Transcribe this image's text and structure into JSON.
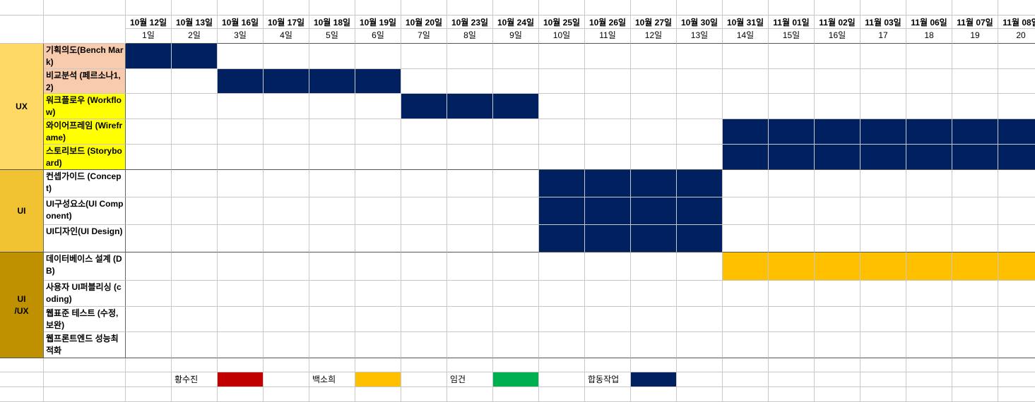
{
  "columns": [
    {
      "date": "10월 12일",
      "day": "1일"
    },
    {
      "date": "10월 13일",
      "day": "2일"
    },
    {
      "date": "10월 16일",
      "day": "3일"
    },
    {
      "date": "10월 17일",
      "day": "4일"
    },
    {
      "date": "10월 18일",
      "day": "5일"
    },
    {
      "date": "10월 19일",
      "day": "6일"
    },
    {
      "date": "10월 20일",
      "day": "7일"
    },
    {
      "date": "10월 23일",
      "day": "8일"
    },
    {
      "date": "10월 24일",
      "day": "9일"
    },
    {
      "date": "10월 25일",
      "day": "10일"
    },
    {
      "date": "10월 26일",
      "day": "11일"
    },
    {
      "date": "10월 27일",
      "day": "12일"
    },
    {
      "date": "10월 30일",
      "day": "13일"
    },
    {
      "date": "10월 31일",
      "day": "14일"
    },
    {
      "date": "11월 01일",
      "day": "15일"
    },
    {
      "date": "11월 02일",
      "day": "16일"
    },
    {
      "date": "11월 03일",
      "day": "17"
    },
    {
      "date": "11월 06일",
      "day": "18"
    },
    {
      "date": "11월 07일",
      "day": "19"
    },
    {
      "date": "11월 08일",
      "day": "20"
    }
  ],
  "groups": [
    {
      "label": "UX",
      "color": "#ffd966"
    },
    {
      "label": "UI",
      "color": "#f1c232"
    },
    {
      "label": "UI\n/UX",
      "color": "#bf9000"
    }
  ],
  "tasks": [
    {
      "name": "기획의도(Bench Mark)",
      "color": "#f8cbad",
      "bar_color": "#002060",
      "bar_start_day": 1,
      "bar_end_day": 2
    },
    {
      "name": "비교분석 (페르소나1, 2)",
      "color": "#f8cbad",
      "bar_color": "#002060",
      "bar_start_day": 3,
      "bar_end_day": 6
    },
    {
      "name": "워크플로우 (Workflow)",
      "color": "#ffff00",
      "bar_color": "#002060",
      "bar_start_day": 7,
      "bar_end_day": 9
    },
    {
      "name": "와이어프레임 (Wireframe)",
      "color": "#ffff00",
      "bar_color": "#002060",
      "bar_start_day": 14,
      "bar_end_day": 20
    },
    {
      "name": "스토리보드 (Storyboard)",
      "color": "#ffff00",
      "bar_color": "#002060",
      "bar_start_day": 14,
      "bar_end_day": 20
    },
    {
      "name": "컨셉가이드 (Concept)",
      "color": "#ffffff",
      "bar_color": "#002060",
      "bar_start_day": 10,
      "bar_end_day": 13
    },
    {
      "name": "UI구성요소(UI Component)",
      "color": "#ffffff",
      "bar_color": "#002060",
      "bar_start_day": 10,
      "bar_end_day": 13
    },
    {
      "name": "UI디자인(UI Design)",
      "color": "#ffffff",
      "bar_color": "#002060",
      "bar_start_day": 10,
      "bar_end_day": 13
    },
    {
      "name": "데이터베이스 설계 (DB)",
      "color": "#ffffff",
      "bar_color": "#ffc000",
      "bar_start_day": 14,
      "bar_end_day": 20
    },
    {
      "name": "사용자 UI퍼블리싱 (coding)",
      "color": "#ffffff",
      "bar_color": null,
      "bar_start_day": null,
      "bar_end_day": null
    },
    {
      "name": "웹표준 테스트 (수정, 보완)",
      "color": "#ffffff",
      "bar_color": null,
      "bar_start_day": null,
      "bar_end_day": null
    },
    {
      "name": "웹프론트엔드 성능최적화",
      "color": "#ffffff",
      "bar_color": null,
      "bar_start_day": null,
      "bar_end_day": null
    }
  ],
  "legend": [
    {
      "name": "황수진",
      "color": "#c00000"
    },
    {
      "name": "백소희",
      "color": "#ffc000"
    },
    {
      "name": "임건",
      "color": "#00b050"
    },
    {
      "name": "합동작업",
      "color": "#002060"
    }
  ]
}
